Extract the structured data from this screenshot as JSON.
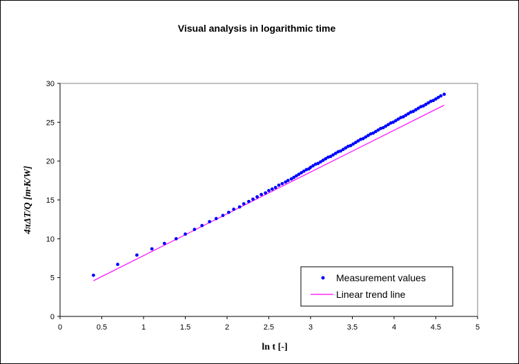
{
  "chart_data": {
    "type": "scatter",
    "title": "Visual analysis in logarithmic time",
    "xlabel": "ln t  [-]",
    "ylabel": "4πΔT/Q   [m·K/W]",
    "xlim": [
      0,
      5
    ],
    "ylim": [
      0,
      30
    ],
    "xticks": [
      "0",
      "0.5",
      "1",
      "1.5",
      "2",
      "2.5",
      "3",
      "3.5",
      "4",
      "4.5",
      "5"
    ],
    "yticks": [
      "0",
      "5",
      "10",
      "15",
      "20",
      "25",
      "30"
    ],
    "grid": false,
    "legend_position": "bottom-right",
    "series": [
      {
        "name": "Measurement values",
        "kind": "markers",
        "color": "#0000ff",
        "x": [
          0.4,
          0.69,
          0.92,
          1.1,
          1.25,
          1.39,
          1.5,
          1.61,
          1.7,
          1.79,
          1.87,
          1.95,
          2.02,
          2.08,
          2.15,
          2.2,
          2.26,
          2.31,
          2.36,
          2.41,
          2.46,
          2.5,
          2.54,
          2.58,
          2.62,
          2.66,
          2.7,
          2.73,
          2.77,
          2.8,
          2.83,
          2.86,
          2.89,
          2.92,
          2.95,
          2.98,
          3.0,
          3.03,
          3.06,
          3.09,
          3.12,
          3.15,
          3.18,
          3.21,
          3.24,
          3.27,
          3.3,
          3.33,
          3.36,
          3.39,
          3.42,
          3.45,
          3.48,
          3.51,
          3.54,
          3.57,
          3.6,
          3.63,
          3.66,
          3.69,
          3.72,
          3.75,
          3.78,
          3.81,
          3.84,
          3.87,
          3.9,
          3.93,
          3.96,
          3.99,
          4.02,
          4.05,
          4.08,
          4.11,
          4.14,
          4.17,
          4.2,
          4.23,
          4.26,
          4.29,
          4.32,
          4.35,
          4.38,
          4.41,
          4.44,
          4.47,
          4.5,
          4.53,
          4.56,
          4.6
        ],
        "y": [
          5.3,
          6.7,
          7.9,
          8.7,
          9.4,
          10.0,
          10.6,
          11.2,
          11.7,
          12.2,
          12.6,
          13.0,
          13.4,
          13.8,
          14.1,
          14.5,
          14.8,
          15.1,
          15.4,
          15.7,
          15.9,
          16.2,
          16.4,
          16.6,
          16.9,
          17.1,
          17.3,
          17.5,
          17.7,
          17.9,
          18.1,
          18.3,
          18.5,
          18.7,
          18.9,
          19.0,
          19.2,
          19.4,
          19.6,
          19.7,
          19.9,
          20.1,
          20.3,
          20.5,
          20.6,
          20.8,
          21.0,
          21.2,
          21.3,
          21.5,
          21.7,
          21.9,
          22.0,
          22.2,
          22.4,
          22.6,
          22.8,
          22.9,
          23.1,
          23.3,
          23.5,
          23.6,
          23.8,
          24.0,
          24.2,
          24.3,
          24.5,
          24.7,
          24.9,
          25.0,
          25.2,
          25.4,
          25.6,
          25.7,
          25.9,
          26.1,
          26.3,
          26.4,
          26.6,
          26.8,
          27.0,
          27.1,
          27.3,
          27.5,
          27.7,
          27.8,
          28.0,
          28.2,
          28.4,
          28.6
        ]
      },
      {
        "name": "Linear trend line",
        "kind": "line",
        "color": "#ff00ff",
        "x": [
          0.4,
          4.6
        ],
        "y": [
          4.6,
          27.2
        ]
      }
    ]
  }
}
